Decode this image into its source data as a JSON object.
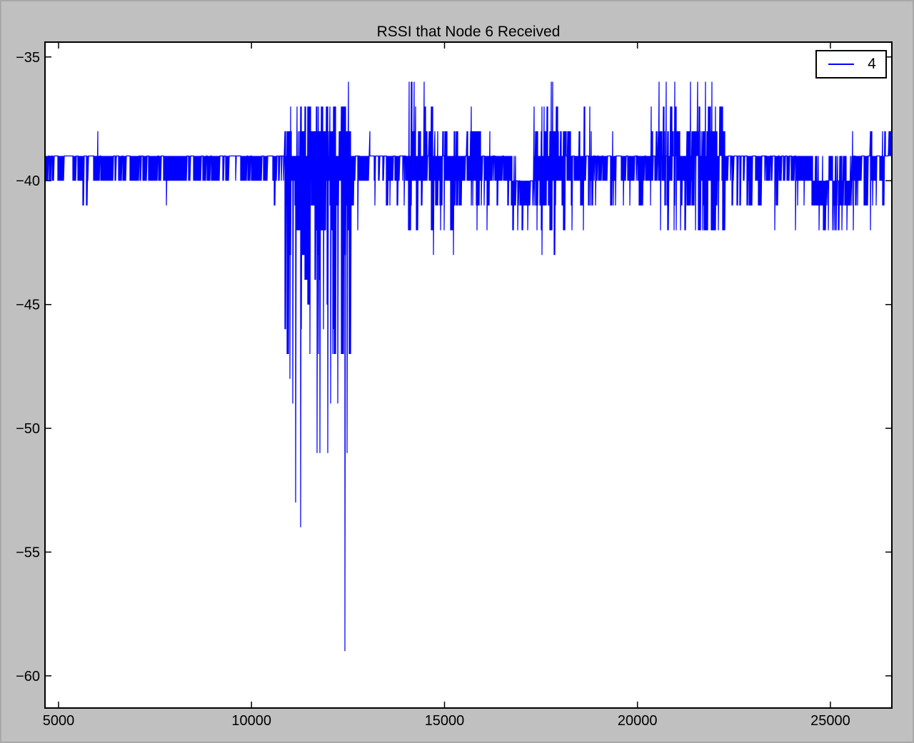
{
  "window": {
    "background_color": "#c0c0c0",
    "plot_background_color": "#ffffff",
    "axes_color": "#000000"
  },
  "chart_data": {
    "type": "line",
    "title": "RSSI that Node 6 Received",
    "xlabel": "",
    "ylabel": "",
    "grid": false,
    "legend": {
      "position": "top-right",
      "entries": [
        {
          "label": "4",
          "color": "#0000ff"
        }
      ]
    },
    "series_label": "4",
    "line_color": "#0000ff",
    "x_range": [
      4648,
      26593
    ],
    "y_range": [
      -61.3,
      -34.4
    ],
    "x_ticks": [
      5000,
      10000,
      15000,
      20000,
      25000
    ],
    "x_tick_labels": [
      "5000",
      "10000",
      "15000",
      "20000",
      "25000"
    ],
    "y_ticks": [
      -35,
      -40,
      -45,
      -50,
      -55,
      -60
    ],
    "y_tick_labels": [
      "−35",
      "−40",
      "−45",
      "−50",
      "−55",
      "−60"
    ],
    "baseline_value": -39,
    "noise_seed": 7,
    "description": "Dense noisy RSSI trace (dBm) vs sample index; mostly oscillating between -39 and -40 dBm, with a strong fading burst around x=10850..12600 dipping to -59 dBm, activity bursts up to -36 dBm near x=14100-14500, 17700-17800 and 20400-22250, and a lower -40/-41 dBm band near x=16740-17320 and 24500-25550.",
    "segments": [
      {
        "x0": 4648,
        "x1": 10850,
        "tops": [
          [
            -39,
            1
          ]
        ],
        "bottoms": [
          [
            -40,
            0.72
          ],
          [
            -39,
            0.27
          ],
          [
            -41,
            0.01
          ]
        ]
      },
      {
        "x0": 10850,
        "x1": 12600,
        "tops": [
          [
            -37,
            0.32
          ],
          [
            -38,
            0.3
          ],
          [
            -39,
            0.38
          ]
        ],
        "bottoms": [
          [
            -42,
            0.28
          ],
          [
            -41,
            0.2
          ],
          [
            -40,
            0.12
          ],
          [
            -39,
            0.05
          ],
          [
            -43,
            0.08
          ],
          [
            -44,
            0.07
          ],
          [
            -45,
            0.08
          ],
          [
            -46,
            0.06
          ],
          [
            -47,
            0.06
          ]
        ]
      },
      {
        "x0": 12600,
        "x1": 13040,
        "tops": [
          [
            -39,
            1
          ]
        ],
        "bottoms": [
          [
            -40,
            0.55
          ],
          [
            -39,
            0.4
          ],
          [
            -41,
            0.05
          ]
        ]
      },
      {
        "x0": 13040,
        "x1": 14050,
        "tops": [
          [
            -39,
            1
          ]
        ],
        "bottoms": [
          [
            -40,
            0.55
          ],
          [
            -39,
            0.3
          ],
          [
            -41,
            0.15
          ]
        ]
      },
      {
        "x0": 14050,
        "x1": 14550,
        "tops": [
          [
            -39,
            0.45
          ],
          [
            -38,
            0.35
          ],
          [
            -37,
            0.2
          ]
        ],
        "bottoms": [
          [
            -40,
            0.5
          ],
          [
            -41,
            0.3
          ],
          [
            -42,
            0.2
          ]
        ]
      },
      {
        "x0": 14550,
        "x1": 15450,
        "tops": [
          [
            -39,
            0.6
          ],
          [
            -38,
            0.3
          ],
          [
            -37,
            0.1
          ]
        ],
        "bottoms": [
          [
            -40,
            0.4
          ],
          [
            -41,
            0.3
          ],
          [
            -42,
            0.15
          ],
          [
            -39,
            0.15
          ]
        ]
      },
      {
        "x0": 15450,
        "x1": 15950,
        "tops": [
          [
            -38,
            0.55
          ],
          [
            -39,
            0.35
          ],
          [
            -37,
            0.1
          ]
        ],
        "bottoms": [
          [
            -40,
            0.5
          ],
          [
            -39,
            0.28
          ],
          [
            -41,
            0.22
          ]
        ]
      },
      {
        "x0": 15950,
        "x1": 16740,
        "tops": [
          [
            -39,
            0.97
          ],
          [
            -38,
            0.03
          ]
        ],
        "bottoms": [
          [
            -40,
            0.55
          ],
          [
            -39,
            0.3
          ],
          [
            -41,
            0.15
          ]
        ]
      },
      {
        "x0": 16740,
        "x1": 17320,
        "tops": [
          [
            -40,
            0.62
          ],
          [
            -39,
            0.38
          ]
        ],
        "bottoms": [
          [
            -41,
            0.55
          ],
          [
            -40,
            0.3
          ],
          [
            -42,
            0.15
          ]
        ]
      },
      {
        "x0": 17320,
        "x1": 18100,
        "tops": [
          [
            -38,
            0.45
          ],
          [
            -37,
            0.27
          ],
          [
            -39,
            0.28
          ]
        ],
        "bottoms": [
          [
            -40,
            0.38
          ],
          [
            -41,
            0.34
          ],
          [
            -42,
            0.22
          ],
          [
            -43,
            0.06
          ]
        ]
      },
      {
        "x0": 18100,
        "x1": 18850,
        "tops": [
          [
            -39,
            0.66
          ],
          [
            -38,
            0.27
          ],
          [
            -37,
            0.07
          ]
        ],
        "bottoms": [
          [
            -40,
            0.48
          ],
          [
            -41,
            0.3
          ],
          [
            -42,
            0.14
          ],
          [
            -39,
            0.08
          ]
        ]
      },
      {
        "x0": 18850,
        "x1": 20350,
        "tops": [
          [
            -39,
            0.97
          ],
          [
            -38,
            0.03
          ]
        ],
        "bottoms": [
          [
            -40,
            0.53
          ],
          [
            -39,
            0.33
          ],
          [
            -41,
            0.14
          ]
        ]
      },
      {
        "x0": 20350,
        "x1": 22250,
        "tops": [
          [
            -39,
            0.32
          ],
          [
            -38,
            0.45
          ],
          [
            -37,
            0.23
          ]
        ],
        "bottoms": [
          [
            -40,
            0.38
          ],
          [
            -41,
            0.3
          ],
          [
            -42,
            0.22
          ],
          [
            -39,
            0.1
          ]
        ]
      },
      {
        "x0": 22250,
        "x1": 23450,
        "tops": [
          [
            -39,
            1
          ]
        ],
        "bottoms": [
          [
            -40,
            0.5
          ],
          [
            -39,
            0.35
          ],
          [
            -41,
            0.15
          ]
        ]
      },
      {
        "x0": 23450,
        "x1": 24500,
        "tops": [
          [
            -39,
            0.97
          ],
          [
            -38,
            0.03
          ]
        ],
        "bottoms": [
          [
            -40,
            0.55
          ],
          [
            -39,
            0.28
          ],
          [
            -41,
            0.17
          ]
        ]
      },
      {
        "x0": 24500,
        "x1": 25550,
        "tops": [
          [
            -40,
            0.58
          ],
          [
            -39,
            0.42
          ]
        ],
        "bottoms": [
          [
            -41,
            0.52
          ],
          [
            -40,
            0.3
          ],
          [
            -42,
            0.18
          ]
        ]
      },
      {
        "x0": 25550,
        "x1": 26400,
        "tops": [
          [
            -39,
            0.82
          ],
          [
            -38,
            0.18
          ]
        ],
        "bottoms": [
          [
            -40,
            0.5
          ],
          [
            -41,
            0.28
          ],
          [
            -39,
            0.22
          ]
        ]
      },
      {
        "x0": 26400,
        "x1": 26594,
        "tops": [
          [
            -39,
            0.7
          ],
          [
            -38,
            0.3
          ]
        ],
        "bottoms": [
          [
            -40,
            0.35
          ],
          [
            -39,
            0.65
          ]
        ]
      }
    ],
    "spike_events": [
      {
        "x": 6018,
        "v": -38
      },
      {
        "x": 7790,
        "v": -41
      },
      {
        "x": 10590,
        "v": -41
      },
      {
        "x": 11000,
        "v": -48
      },
      {
        "x": 11074,
        "v": -49
      },
      {
        "x": 11148,
        "v": -53
      },
      {
        "x": 11278,
        "v": -54
      },
      {
        "x": 11460,
        "v": -45
      },
      {
        "x": 11520,
        "v": -47
      },
      {
        "x": 11704,
        "v": -51
      },
      {
        "x": 11778,
        "v": -51
      },
      {
        "x": 11870,
        "v": -46
      },
      {
        "x": 11981,
        "v": -51
      },
      {
        "x": 12050,
        "v": -49
      },
      {
        "x": 12170,
        "v": -45
      },
      {
        "x": 12240,
        "v": -49
      },
      {
        "x": 12426,
        "v": -59
      },
      {
        "x": 12480,
        "v": -51
      },
      {
        "x": 12519,
        "v": -36
      },
      {
        "x": 12760,
        "v": -42
      },
      {
        "x": 13060,
        "v": -38
      },
      {
        "x": 14090,
        "v": -36
      },
      {
        "x": 14150,
        "v": -36
      },
      {
        "x": 14220,
        "v": -36
      },
      {
        "x": 14480,
        "v": -36
      },
      {
        "x": 14710,
        "v": -43
      },
      {
        "x": 15240,
        "v": -43
      },
      {
        "x": 15850,
        "v": -42
      },
      {
        "x": 16100,
        "v": -42
      },
      {
        "x": 16900,
        "v": -42
      },
      {
        "x": 17150,
        "v": -42
      },
      {
        "x": 17760,
        "v": -36
      },
      {
        "x": 17800,
        "v": -36
      },
      {
        "x": 17850,
        "v": -43
      },
      {
        "x": 18300,
        "v": -42
      },
      {
        "x": 18600,
        "v": -42
      },
      {
        "x": 18760,
        "v": -37
      },
      {
        "x": 19300,
        "v": -41
      },
      {
        "x": 19800,
        "v": -41
      },
      {
        "x": 20560,
        "v": -36
      },
      {
        "x": 20600,
        "v": -42
      },
      {
        "x": 20740,
        "v": -36
      },
      {
        "x": 20960,
        "v": -36
      },
      {
        "x": 21000,
        "v": -42
      },
      {
        "x": 21370,
        "v": -36
      },
      {
        "x": 21500,
        "v": -42
      },
      {
        "x": 21560,
        "v": -36
      },
      {
        "x": 21760,
        "v": -36
      },
      {
        "x": 21800,
        "v": -42
      },
      {
        "x": 21930,
        "v": -36
      },
      {
        "x": 22100,
        "v": -42
      },
      {
        "x": 23560,
        "v": -42
      },
      {
        "x": 24100,
        "v": -42
      },
      {
        "x": 24700,
        "v": -42
      },
      {
        "x": 24950,
        "v": -42
      },
      {
        "x": 25100,
        "v": -42
      },
      {
        "x": 25300,
        "v": -42
      },
      {
        "x": 25600,
        "v": -42
      },
      {
        "x": 26040,
        "v": -42
      },
      {
        "x": 26540,
        "v": -38
      },
      {
        "x": 26560,
        "v": -38
      },
      {
        "x": 26580,
        "v": -38
      }
    ]
  }
}
